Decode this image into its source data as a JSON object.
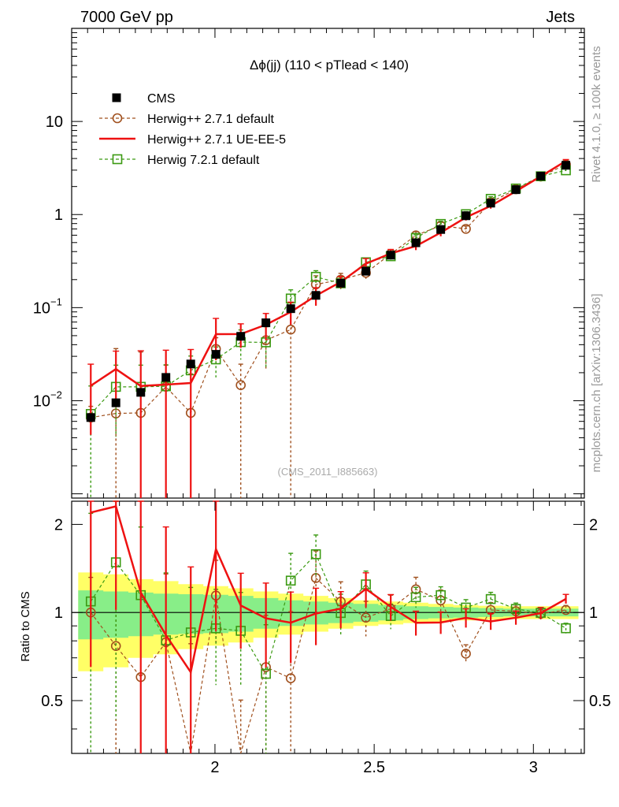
{
  "header": {
    "energy_label": "7000 GeV pp",
    "process_label": "Jets"
  },
  "side": {
    "rivet_label": "Rivet 4.1.0, ≥ 100k events",
    "site_label": "mcplots.cern.ch [arXiv:1306.3436]"
  },
  "colors": {
    "cms": "#000000",
    "herwigpp_default": "#a0501e",
    "herwigpp_ueee5": "#ee1111",
    "herwig7_default": "#3b9a12",
    "band_inner": "#88ee88",
    "band_outer": "#ffff66"
  },
  "chart_data": {
    "type": "line",
    "title": "Δϕ(jj) (110 < pTlead <  140)",
    "watermark": "(CMS_2011_I885663)",
    "xlabel": "",
    "ylabel": "",
    "ratio_ylabel": "Ratio to CMS",
    "xlim": [
      1.55,
      3.16
    ],
    "ylim": [
      0.0009,
      100
    ],
    "yscale": "log",
    "ratio_ylim": [
      0.33,
      2.4
    ],
    "x_ticks": [
      {
        "v": 2,
        "label": "2"
      },
      {
        "v": 2.5,
        "label": "2.5"
      },
      {
        "v": 3,
        "label": "3"
      }
    ],
    "y_ticks": [
      {
        "v": 0.01,
        "base": "10",
        "exp": "−2"
      },
      {
        "v": 0.1,
        "base": "10",
        "exp": "−1"
      },
      {
        "v": 1,
        "base": "1",
        "exp": ""
      },
      {
        "v": 10,
        "base": "10",
        "exp": ""
      }
    ],
    "ratio_ticks": [
      {
        "v": 0.5,
        "label": "0.5"
      },
      {
        "v": 1,
        "label": "1"
      },
      {
        "v": 2,
        "label": "2"
      }
    ],
    "x": [
      1.61,
      1.689,
      1.767,
      1.846,
      1.924,
      2.003,
      2.081,
      2.16,
      2.238,
      2.317,
      2.395,
      2.474,
      2.552,
      2.631,
      2.709,
      2.788,
      2.866,
      2.945,
      3.023,
      3.102
    ],
    "band_inner_rel": [
      0.19,
      0.18,
      0.17,
      0.16,
      0.155,
      0.15,
      0.14,
      0.12,
      0.1,
      0.09,
      0.08,
      0.07,
      0.06,
      0.05,
      0.045,
      0.04,
      0.035,
      0.03,
      0.03,
      0.03
    ],
    "band_outer_rel": [
      0.37,
      0.35,
      0.3,
      0.28,
      0.25,
      0.23,
      0.21,
      0.18,
      0.16,
      0.14,
      0.12,
      0.1,
      0.09,
      0.08,
      0.07,
      0.06,
      0.055,
      0.05,
      0.05,
      0.05
    ],
    "series": [
      {
        "name": "CMS",
        "style": "data",
        "values": [
          0.0066,
          0.0095,
          0.0123,
          0.0178,
          0.0248,
          0.0315,
          0.0492,
          0.0687,
          0.0975,
          0.1355,
          0.1832,
          0.2463,
          0.3665,
          0.4977,
          0.6911,
          0.9711,
          1.3264,
          1.8513,
          2.5839,
          3.3816
        ]
      },
      {
        "name": "Herwig++ 2.7.1 default",
        "style": "circle",
        "values": [
          0.0066,
          0.0073,
          0.0074,
          0.0141,
          0.0074,
          0.036,
          0.0147,
          0.0447,
          0.0581,
          0.1777,
          0.1997,
          0.2365,
          0.3775,
          0.5972,
          0.7602,
          0.7023,
          1.3529,
          1.8698,
          2.5581,
          3.4492
        ],
        "err_low": [
          0.0021,
          0.0073,
          0.0074,
          0.0141,
          0.0074,
          0.0115,
          0.0147,
          0.0225,
          0.0581,
          0.0421,
          0.0335,
          0.0324,
          0.0426,
          0.0594,
          0.0644,
          0.0509,
          0.0816,
          0.094,
          0.1117,
          0.1244
        ],
        "err_high": [
          0.0021,
          0.029,
          0.026,
          0.01,
          0.012,
          0.0115,
          0.01,
          0.0225,
          0.04,
          0.0421,
          0.0335,
          0.0324,
          0.0426,
          0.0594,
          0.0644,
          0.0509,
          0.0816,
          0.094,
          0.1117,
          0.1244
        ]
      },
      {
        "name": "Herwig++ 2.7.1 UE-EE-5",
        "style": "line",
        "values": [
          0.0145,
          0.0219,
          0.0144,
          0.0149,
          0.0155,
          0.0519,
          0.052,
          0.0656,
          0.09,
          0.1344,
          0.1889,
          0.2966,
          0.383,
          0.4589,
          0.6388,
          0.9311,
          1.2369,
          1.7771,
          2.5718,
          3.763
        ],
        "err_low": [
          0.0102,
          0.0122,
          0.0144,
          0.0149,
          0.0155,
          0.0247,
          0.015,
          0.021,
          0.0245,
          0.0296,
          0.027,
          0.04,
          0.039,
          0.0439,
          0.0549,
          0.0687,
          0.0797,
          0.0957,
          0.1161,
          0.136
        ],
        "err_high": [
          0.0102,
          0.0122,
          0.02,
          0.02,
          0.02,
          0.0247,
          0.015,
          0.021,
          0.0245,
          0.0296,
          0.027,
          0.04,
          0.039,
          0.0439,
          0.0549,
          0.0687,
          0.0797,
          0.0957,
          0.1161,
          0.136
        ]
      },
      {
        "name": "Herwig 7.2.1 default",
        "style": "square",
        "values": [
          0.0072,
          0.0141,
          0.0141,
          0.0143,
          0.0212,
          0.0278,
          0.0426,
          0.0424,
          0.1253,
          0.2143,
          0.1825,
          0.3072,
          0.3565,
          0.5613,
          0.7921,
          1.0094,
          1.4743,
          1.9036,
          2.5774,
          2.9872
        ],
        "err_low": [
          0.0072,
          0.01,
          0.0141,
          0.01,
          0.009,
          0.01,
          0.015,
          0.02,
          0.03,
          0.035,
          0.029,
          0.034,
          0.035,
          0.045,
          0.054,
          0.065,
          0.08,
          0.09,
          0.11,
          0.12
        ],
        "err_high": [
          0.0072,
          0.01,
          0.01,
          0.01,
          0.009,
          0.01,
          0.015,
          0.02,
          0.03,
          0.035,
          0.029,
          0.034,
          0.035,
          0.045,
          0.054,
          0.065,
          0.08,
          0.09,
          0.11,
          0.12
        ]
      }
    ]
  }
}
